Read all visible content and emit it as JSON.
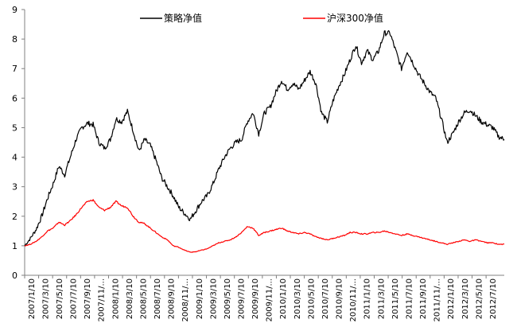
{
  "chart_data": {
    "type": "line",
    "title": "",
    "xlabel": "",
    "ylabel": "",
    "ylim": [
      0,
      9
    ],
    "yticks": [
      "0",
      "1",
      "2",
      "3",
      "4",
      "5",
      "6",
      "7",
      "8",
      "9"
    ],
    "grid": false,
    "legend_position": "top",
    "x_tick_labels": [
      "2007/1/10",
      "2007/3/10",
      "2007/5/10",
      "2007/7/10",
      "2007/9/10",
      "2007/11/...",
      "2008/1/10",
      "2008/3/10",
      "2008/5/10",
      "2008/7/10",
      "2008/9/10",
      "2008/11/...",
      "2009/1/10",
      "2009/3/10",
      "2009/5/10",
      "2009/7/10",
      "2009/9/10",
      "2009/11/...",
      "2010/1/10",
      "2010/3/10",
      "2010/5/10",
      "2010/7/10",
      "2010/9/10",
      "2010/11/...",
      "2011/1/10",
      "2011/3/10",
      "2011/5/10",
      "2011/7/10",
      "2011/9/10",
      "2011/11/...",
      "2012/1/10",
      "2012/3/10",
      "2012/5/10",
      "2012/7/10"
    ],
    "x_end_index": 34.3,
    "series": [
      {
        "name": "策略净值",
        "color": "#000000",
        "points": [
          [
            0,
            1.0
          ],
          [
            0.5,
            1.25
          ],
          [
            1,
            1.55
          ],
          [
            1.5,
            2.0
          ],
          [
            2,
            2.6
          ],
          [
            2.5,
            3.1
          ],
          [
            3,
            3.7
          ],
          [
            3.5,
            3.4
          ],
          [
            4,
            4.0
          ],
          [
            4.5,
            4.6
          ],
          [
            5,
            5.0
          ],
          [
            5.5,
            5.15
          ],
          [
            6,
            5.1
          ],
          [
            6.5,
            4.5
          ],
          [
            7,
            4.3
          ],
          [
            7.5,
            4.6
          ],
          [
            8,
            5.3
          ],
          [
            8.5,
            5.2
          ],
          [
            9,
            5.55
          ],
          [
            9.5,
            4.9
          ],
          [
            10,
            4.2
          ],
          [
            10.5,
            4.6
          ],
          [
            11,
            4.4
          ],
          [
            11.5,
            3.9
          ],
          [
            12,
            3.3
          ],
          [
            12.5,
            3.0
          ],
          [
            13,
            2.7
          ],
          [
            13.5,
            2.3
          ],
          [
            14,
            2.1
          ],
          [
            14.5,
            1.9
          ],
          [
            15,
            2.2
          ],
          [
            15.5,
            2.5
          ],
          [
            16,
            2.7
          ],
          [
            16.5,
            3.1
          ],
          [
            17,
            3.6
          ],
          [
            17.5,
            4.0
          ],
          [
            18,
            4.3
          ],
          [
            18.5,
            4.5
          ],
          [
            19,
            4.6
          ],
          [
            19.5,
            5.2
          ],
          [
            20,
            5.5
          ],
          [
            20.5,
            4.8
          ],
          [
            21,
            5.5
          ],
          [
            21.5,
            5.7
          ],
          [
            22,
            6.2
          ],
          [
            22.5,
            6.6
          ],
          [
            23,
            6.3
          ],
          [
            23.5,
            6.5
          ],
          [
            24,
            6.3
          ],
          [
            24.5,
            6.6
          ],
          [
            25,
            6.9
          ],
          [
            25.5,
            6.5
          ],
          [
            26,
            5.5
          ],
          [
            26.5,
            5.2
          ],
          [
            27,
            5.9
          ],
          [
            27.5,
            6.4
          ],
          [
            28,
            6.8
          ],
          [
            28.5,
            7.3
          ],
          [
            29,
            7.8
          ],
          [
            29.5,
            7.2
          ],
          [
            30,
            7.6
          ],
          [
            30.5,
            7.3
          ],
          [
            31,
            7.6
          ],
          [
            31.5,
            8.2
          ],
          [
            32,
            8.2
          ],
          [
            32.5,
            7.6
          ],
          [
            33,
            7.0
          ],
          [
            33.5,
            7.6
          ],
          [
            34,
            7.2
          ],
          [
            34.5,
            6.8
          ],
          [
            35,
            6.5
          ],
          [
            35.5,
            6.2
          ],
          [
            36,
            6.0
          ],
          [
            36.5,
            5.3
          ],
          [
            37,
            4.5
          ],
          [
            37.5,
            4.8
          ],
          [
            38,
            5.2
          ],
          [
            38.5,
            5.5
          ],
          [
            39,
            5.6
          ],
          [
            39.5,
            5.4
          ],
          [
            40,
            5.2
          ],
          [
            40.5,
            5.1
          ],
          [
            41,
            5.0
          ],
          [
            41.5,
            4.7
          ],
          [
            42,
            4.6
          ]
        ]
      },
      {
        "name": "沪深300净值",
        "color": "#ff0000",
        "points": [
          [
            0,
            1.0
          ],
          [
            0.5,
            1.05
          ],
          [
            1,
            1.15
          ],
          [
            1.5,
            1.3
          ],
          [
            2,
            1.5
          ],
          [
            2.5,
            1.6
          ],
          [
            3,
            1.8
          ],
          [
            3.5,
            1.7
          ],
          [
            4,
            1.85
          ],
          [
            4.5,
            2.05
          ],
          [
            5,
            2.3
          ],
          [
            5.5,
            2.5
          ],
          [
            6,
            2.55
          ],
          [
            6.5,
            2.3
          ],
          [
            7,
            2.2
          ],
          [
            7.5,
            2.3
          ],
          [
            8,
            2.5
          ],
          [
            8.5,
            2.35
          ],
          [
            9,
            2.3
          ],
          [
            9.5,
            2.0
          ],
          [
            10,
            1.8
          ],
          [
            10.5,
            1.75
          ],
          [
            11,
            1.6
          ],
          [
            11.5,
            1.45
          ],
          [
            12,
            1.3
          ],
          [
            12.5,
            1.2
          ],
          [
            13,
            1.0
          ],
          [
            13.5,
            0.95
          ],
          [
            14,
            0.85
          ],
          [
            14.5,
            0.78
          ],
          [
            15,
            0.8
          ],
          [
            15.5,
            0.85
          ],
          [
            16,
            0.9
          ],
          [
            16.5,
            1.0
          ],
          [
            17,
            1.1
          ],
          [
            17.5,
            1.15
          ],
          [
            18,
            1.2
          ],
          [
            18.5,
            1.3
          ],
          [
            19,
            1.45
          ],
          [
            19.5,
            1.65
          ],
          [
            20,
            1.6
          ],
          [
            20.5,
            1.35
          ],
          [
            21,
            1.45
          ],
          [
            21.5,
            1.5
          ],
          [
            22,
            1.55
          ],
          [
            22.5,
            1.6
          ],
          [
            23,
            1.5
          ],
          [
            23.5,
            1.45
          ],
          [
            24,
            1.4
          ],
          [
            24.5,
            1.45
          ],
          [
            25,
            1.4
          ],
          [
            25.5,
            1.3
          ],
          [
            26,
            1.25
          ],
          [
            26.5,
            1.2
          ],
          [
            27,
            1.25
          ],
          [
            27.5,
            1.3
          ],
          [
            28,
            1.35
          ],
          [
            28.5,
            1.45
          ],
          [
            29,
            1.45
          ],
          [
            29.5,
            1.4
          ],
          [
            30,
            1.4
          ],
          [
            30.5,
            1.45
          ],
          [
            31,
            1.45
          ],
          [
            31.5,
            1.5
          ],
          [
            32,
            1.45
          ],
          [
            32.5,
            1.4
          ],
          [
            33,
            1.35
          ],
          [
            33.5,
            1.4
          ],
          [
            34,
            1.35
          ],
          [
            34.5,
            1.3
          ],
          [
            35,
            1.25
          ],
          [
            35.5,
            1.2
          ],
          [
            36,
            1.15
          ],
          [
            36.5,
            1.1
          ],
          [
            37,
            1.05
          ],
          [
            37.5,
            1.1
          ],
          [
            38,
            1.15
          ],
          [
            38.5,
            1.2
          ],
          [
            39,
            1.15
          ],
          [
            39.5,
            1.2
          ],
          [
            40,
            1.15
          ],
          [
            40.5,
            1.1
          ],
          [
            41,
            1.1
          ],
          [
            41.5,
            1.05
          ],
          [
            42,
            1.05
          ]
        ]
      }
    ]
  }
}
